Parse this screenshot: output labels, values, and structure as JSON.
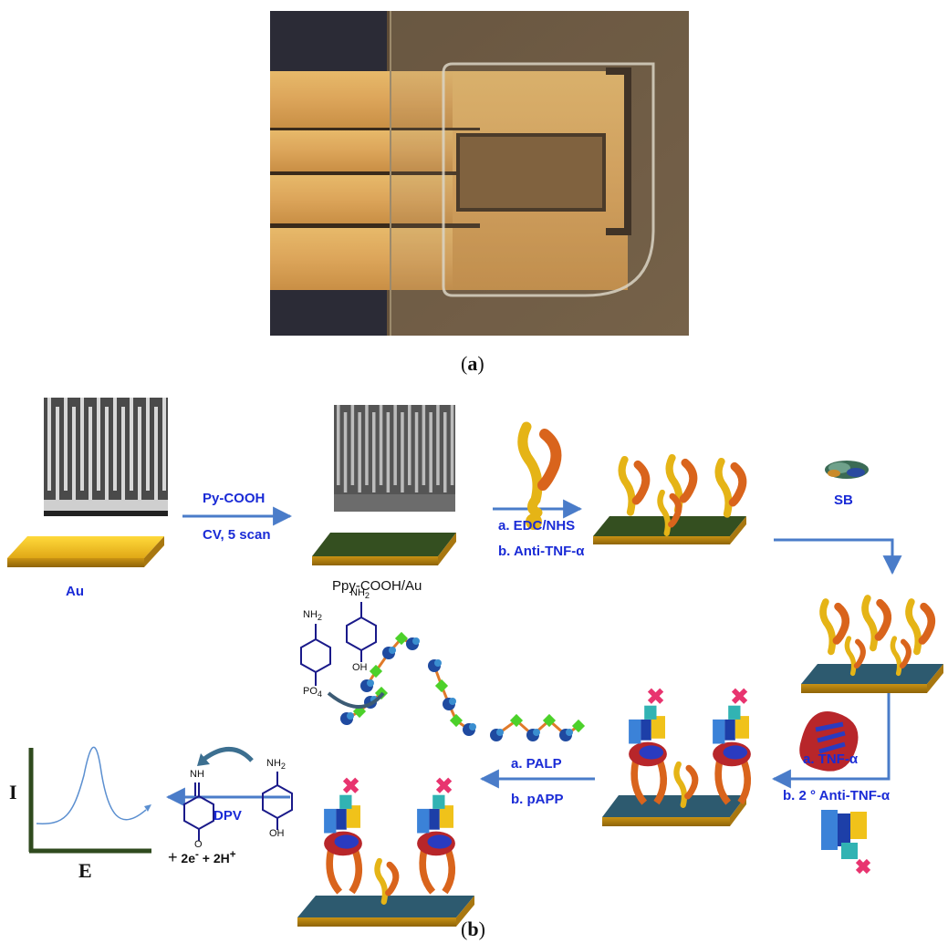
{
  "panel_a": {
    "label_open": "(",
    "label_letter": "a",
    "label_close": ")"
  },
  "panel_b": {
    "label_open": "(",
    "label_letter": "b",
    "label_close": ")"
  },
  "steps": {
    "au": "Au",
    "py_cooh": "Py-COOH",
    "cv_scan": "CV, 5 scan",
    "ppy_au": "Ppy-COOH/Au",
    "edc_nhs": "a. EDC/NHS",
    "anti_tnf": "b. Anti-TNF-α",
    "sb": "SB",
    "tnf": "a. TNF-α",
    "second_anti": "b. 2 ° Anti-TNF-α",
    "palp": "a. PALP",
    "papp": "b. pAPP",
    "dpv": "DPV"
  },
  "chemistry": {
    "nh2": "NH",
    "nh2_sub": "2",
    "po4": "PO",
    "po4_sub": "4",
    "oh": "OH",
    "nh": "NH",
    "o": "O",
    "plus": "+",
    "electrons": "2e",
    "electrons_sup": "-",
    "protons": "+ 2H",
    "protons_sup": "+"
  },
  "graph": {
    "y_label": "I",
    "x_label": "E"
  },
  "colors": {
    "blue_text": "#1a2bd6",
    "arrow": "#4a7cc9",
    "gold": "#f2c21a",
    "green_film": "#2f4a1e",
    "axis": "#2f4a1e",
    "curve": "#5b8fd0"
  }
}
